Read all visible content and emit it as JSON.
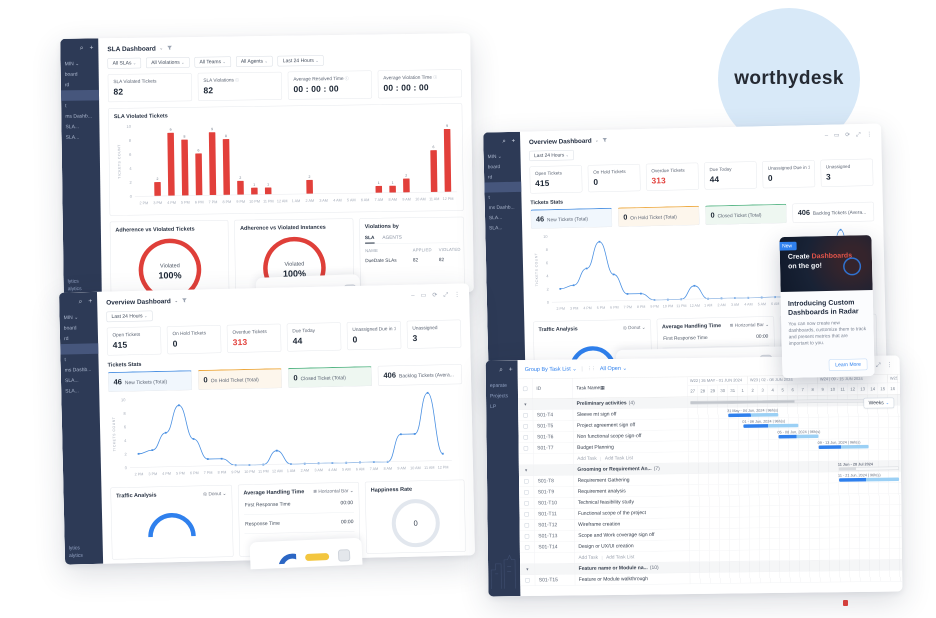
{
  "logo": {
    "text": "worthydesk"
  },
  "sidebar": {
    "items": [
      "MIN  ⌄",
      "board",
      "rd",
      "",
      "t",
      "ms Dashb...",
      "SLA...",
      "SLA..."
    ],
    "active": 3,
    "bottom": [
      "lytics",
      "alytics"
    ]
  },
  "window_icons": [
    {
      "name": "minimize-icon",
      "glyph": "–"
    },
    {
      "name": "window-icon",
      "glyph": "▭"
    },
    {
      "name": "refresh-icon",
      "glyph": "⟳"
    },
    {
      "name": "expand-icon",
      "glyph": "⤢"
    },
    {
      "name": "more-icon",
      "glyph": "⋮"
    }
  ],
  "windows": {
    "sla": {
      "title": "SLA Dashboard",
      "filters": [
        "All SLAs",
        "All Violations",
        "All Teams",
        "All Agents",
        "Last 24 Hours"
      ],
      "metrics": [
        {
          "label": "SLA Violated Tickets",
          "value": "82"
        },
        {
          "label": "SLA Violations",
          "value": "82",
          "info": true
        },
        {
          "label": "Average Resolved Time",
          "value": "00 : 00 : 00",
          "info": true
        },
        {
          "label": "Average Violation Time",
          "value": "00 : 00 : 00",
          "info": true
        }
      ],
      "chart_title": "SLA Violated Tickets",
      "gauges": [
        {
          "title": "Adherence vs Violated Tickets",
          "label": "Violated",
          "value": "100%"
        },
        {
          "title": "Adherence vs Violated Instances",
          "label": "Violated",
          "value": "100%"
        }
      ],
      "violations": {
        "title": "Violations by",
        "tabs": [
          "SLA",
          "AGENTS"
        ],
        "columns": [
          "NAME",
          "APPLIED",
          "VIOLATED"
        ],
        "rows": [
          {
            "name": "DueDate SLAs",
            "applied": "82",
            "violated": "82"
          }
        ]
      }
    },
    "overview": {
      "title": "Overview Dashboard",
      "filter": "Last 24 Hours",
      "metrics": [
        {
          "label": "Open Tickets",
          "value": "415"
        },
        {
          "label": "On Hold Tickets",
          "value": "0"
        },
        {
          "label": "Overdue Tickets",
          "value": "313",
          "alert": true
        },
        {
          "label": "Due Today",
          "value": "44"
        },
        {
          "label": "Unassigned Due in 1 hour",
          "value": "0"
        },
        {
          "label": "Unassigned",
          "value": "3"
        }
      ],
      "tickets_stats": {
        "title": "Tickets Stats",
        "cards": [
          {
            "value": "46",
            "label": "New Tickets (Total)",
            "color": "blue"
          },
          {
            "value": "0",
            "label": "On Hold Ticket (Total)",
            "color": "orange"
          },
          {
            "value": "0",
            "label": "Closed Ticket (Total)",
            "color": "green"
          },
          {
            "value": "406",
            "label": "Backlog Tickets (Avera...",
            "color": "plain"
          }
        ]
      },
      "traffic": {
        "title": "Traffic Analysis",
        "dropdown": "Donut"
      },
      "handling": {
        "title": "Average Handling Time",
        "dropdown": "Horizontal Bar",
        "rows": [
          {
            "label": "First Response Time",
            "value": "00:00"
          },
          {
            "label": "Response Time",
            "value": "00:00"
          }
        ]
      },
      "happiness": {
        "title": "Happiness Rate",
        "value": "0"
      }
    },
    "gantt": {
      "toolbar": {
        "group_by": "Group By Task List",
        "filter": "All Open"
      },
      "columns": {
        "id": "ID",
        "task": "Task Name"
      },
      "zoom": "Weeks",
      "weeks": [
        {
          "label": "W22 | 26 MAY - 01 JUN 2024",
          "cols": 6
        },
        {
          "label": "W23 | 02 - 08 JUN 2024",
          "cols": 7
        },
        {
          "label": "W24 | 09 - 15 JUN 2024",
          "cols": 7
        },
        {
          "label": "W25",
          "cols": 1
        }
      ],
      "days": [
        27,
        28,
        29,
        30,
        31,
        1,
        2,
        3,
        4,
        5,
        6,
        7,
        8,
        9,
        10,
        11,
        12,
        13,
        14,
        15,
        16
      ],
      "add_task": "Add Task",
      "add_task_list": "Add Task List",
      "sidebar": [
        "eparate",
        "Projects",
        "LP"
      ],
      "rows": [
        {
          "type": "group",
          "name": "Preliminary activities",
          "count": "(4)",
          "bar": {
            "start": 0.2,
            "len": 19,
            "style": "progress"
          }
        },
        {
          "type": "task",
          "id": "S01-T4",
          "name": "Sleeve mt sign off",
          "bar": {
            "start": 4,
            "len": 5,
            "style": "task",
            "label": "31 May - 04 Jun, 2024 | 96h(s)"
          }
        },
        {
          "type": "task",
          "id": "S01-T5",
          "name": "Project agreement sign off",
          "bar": {
            "start": 5.5,
            "len": 5.5,
            "style": "task",
            "label": "01 - 06 Jun, 2024 | 96h(s)"
          }
        },
        {
          "type": "task",
          "id": "S01-T6",
          "name": "Non functional scope sign-off",
          "bar": {
            "start": 9,
            "len": 4,
            "style": "task",
            "label": "05 - 08 Jun, 2024 | 96h(s)"
          }
        },
        {
          "type": "task",
          "id": "S01-T7",
          "name": "Budget Planning",
          "bar": {
            "start": 13,
            "len": 5,
            "style": "task",
            "label": "09 - 13 Jun, 2024 | 96h(s)"
          }
        },
        {
          "type": "add"
        },
        {
          "type": "group",
          "name": "Grooming or Requirement An...",
          "count": "(7)",
          "bar": {
            "start": 15,
            "len": 6,
            "style": "outline",
            "label": "11 Jun - 28 Jul 2024"
          }
        },
        {
          "type": "task",
          "id": "S01-T8",
          "name": "Requirement Gathering",
          "bar": {
            "start": 15,
            "len": 6,
            "style": "task",
            "label": "11 - 21 Jun, 2024 | 96h(s)"
          }
        },
        {
          "type": "task",
          "id": "S01-T9",
          "name": "Requirement analysis"
        },
        {
          "type": "task",
          "id": "S01-T10",
          "name": "Technical feasibility study"
        },
        {
          "type": "task",
          "id": "S01-T11",
          "name": "Functional scope of the project"
        },
        {
          "type": "task",
          "id": "S01-T12",
          "name": "Wireframe creation"
        },
        {
          "type": "task",
          "id": "S01-T13",
          "name": "Scope and Work coverage sign off"
        },
        {
          "type": "task",
          "id": "S01-T14",
          "name": "Design or UX/UI creation"
        },
        {
          "type": "add"
        },
        {
          "type": "group",
          "name": "Feature name or Module na...",
          "count": "(10)"
        },
        {
          "type": "task",
          "id": "S01-T15",
          "name": "Feature or Module walkthrough"
        }
      ]
    }
  },
  "popup": {
    "badge": "New",
    "banner_pre": "Create",
    "banner_highlight": "Dashboards",
    "banner_post": "on the go!",
    "title": "Introducing Custom Dashboards in Radar",
    "body": "You can now create new dashboards, customize them to track and present metrics that are important to you.",
    "button": "Learn More"
  },
  "chart_data": [
    {
      "type": "bar",
      "title": "SLA Violated Tickets",
      "categories": [
        "2 PM",
        "3 PM",
        "4 PM",
        "5 PM",
        "6 PM",
        "7 PM",
        "8 PM",
        "9 PM",
        "10 PM",
        "11 PM",
        "12 AM",
        "1 AM",
        "2 AM",
        "3 AM",
        "4 AM",
        "5 AM",
        "6 AM",
        "7 AM",
        "8 AM",
        "9 AM",
        "10 AM",
        "11 AM",
        "12 PM"
      ],
      "values": [
        0,
        2,
        9,
        8,
        6,
        9,
        8,
        2,
        1,
        1,
        0,
        0,
        2,
        0,
        0,
        0,
        0,
        1,
        1,
        2,
        0,
        6,
        9
      ],
      "xlabel": "",
      "ylabel": "TICKETS COUNT",
      "ylim": [
        0,
        10
      ],
      "grid": false,
      "color": "#e2403b"
    },
    {
      "type": "line",
      "title": "Tickets Stats",
      "categories": [
        "2 PM",
        "3 PM",
        "4 PM",
        "5 PM",
        "6 PM",
        "7 PM",
        "8 PM",
        "9 PM",
        "10 PM",
        "11 PM",
        "12 AM",
        "1 AM",
        "2 AM",
        "3 AM",
        "4 AM",
        "5 AM",
        "6 AM",
        "7 AM",
        "8 AM",
        "9 AM",
        "10 AM",
        "11 AM",
        "12 PM"
      ],
      "values": [
        2,
        2.5,
        5,
        9,
        4,
        1,
        1,
        0,
        0,
        0,
        2,
        0,
        0,
        0,
        0,
        0,
        0,
        0,
        0,
        4,
        4,
        10,
        1
      ],
      "xlabel": "",
      "ylabel": "TICKETS COUNT",
      "ylim": [
        0,
        10
      ],
      "grid": false,
      "color": "#4a90e2"
    }
  ]
}
